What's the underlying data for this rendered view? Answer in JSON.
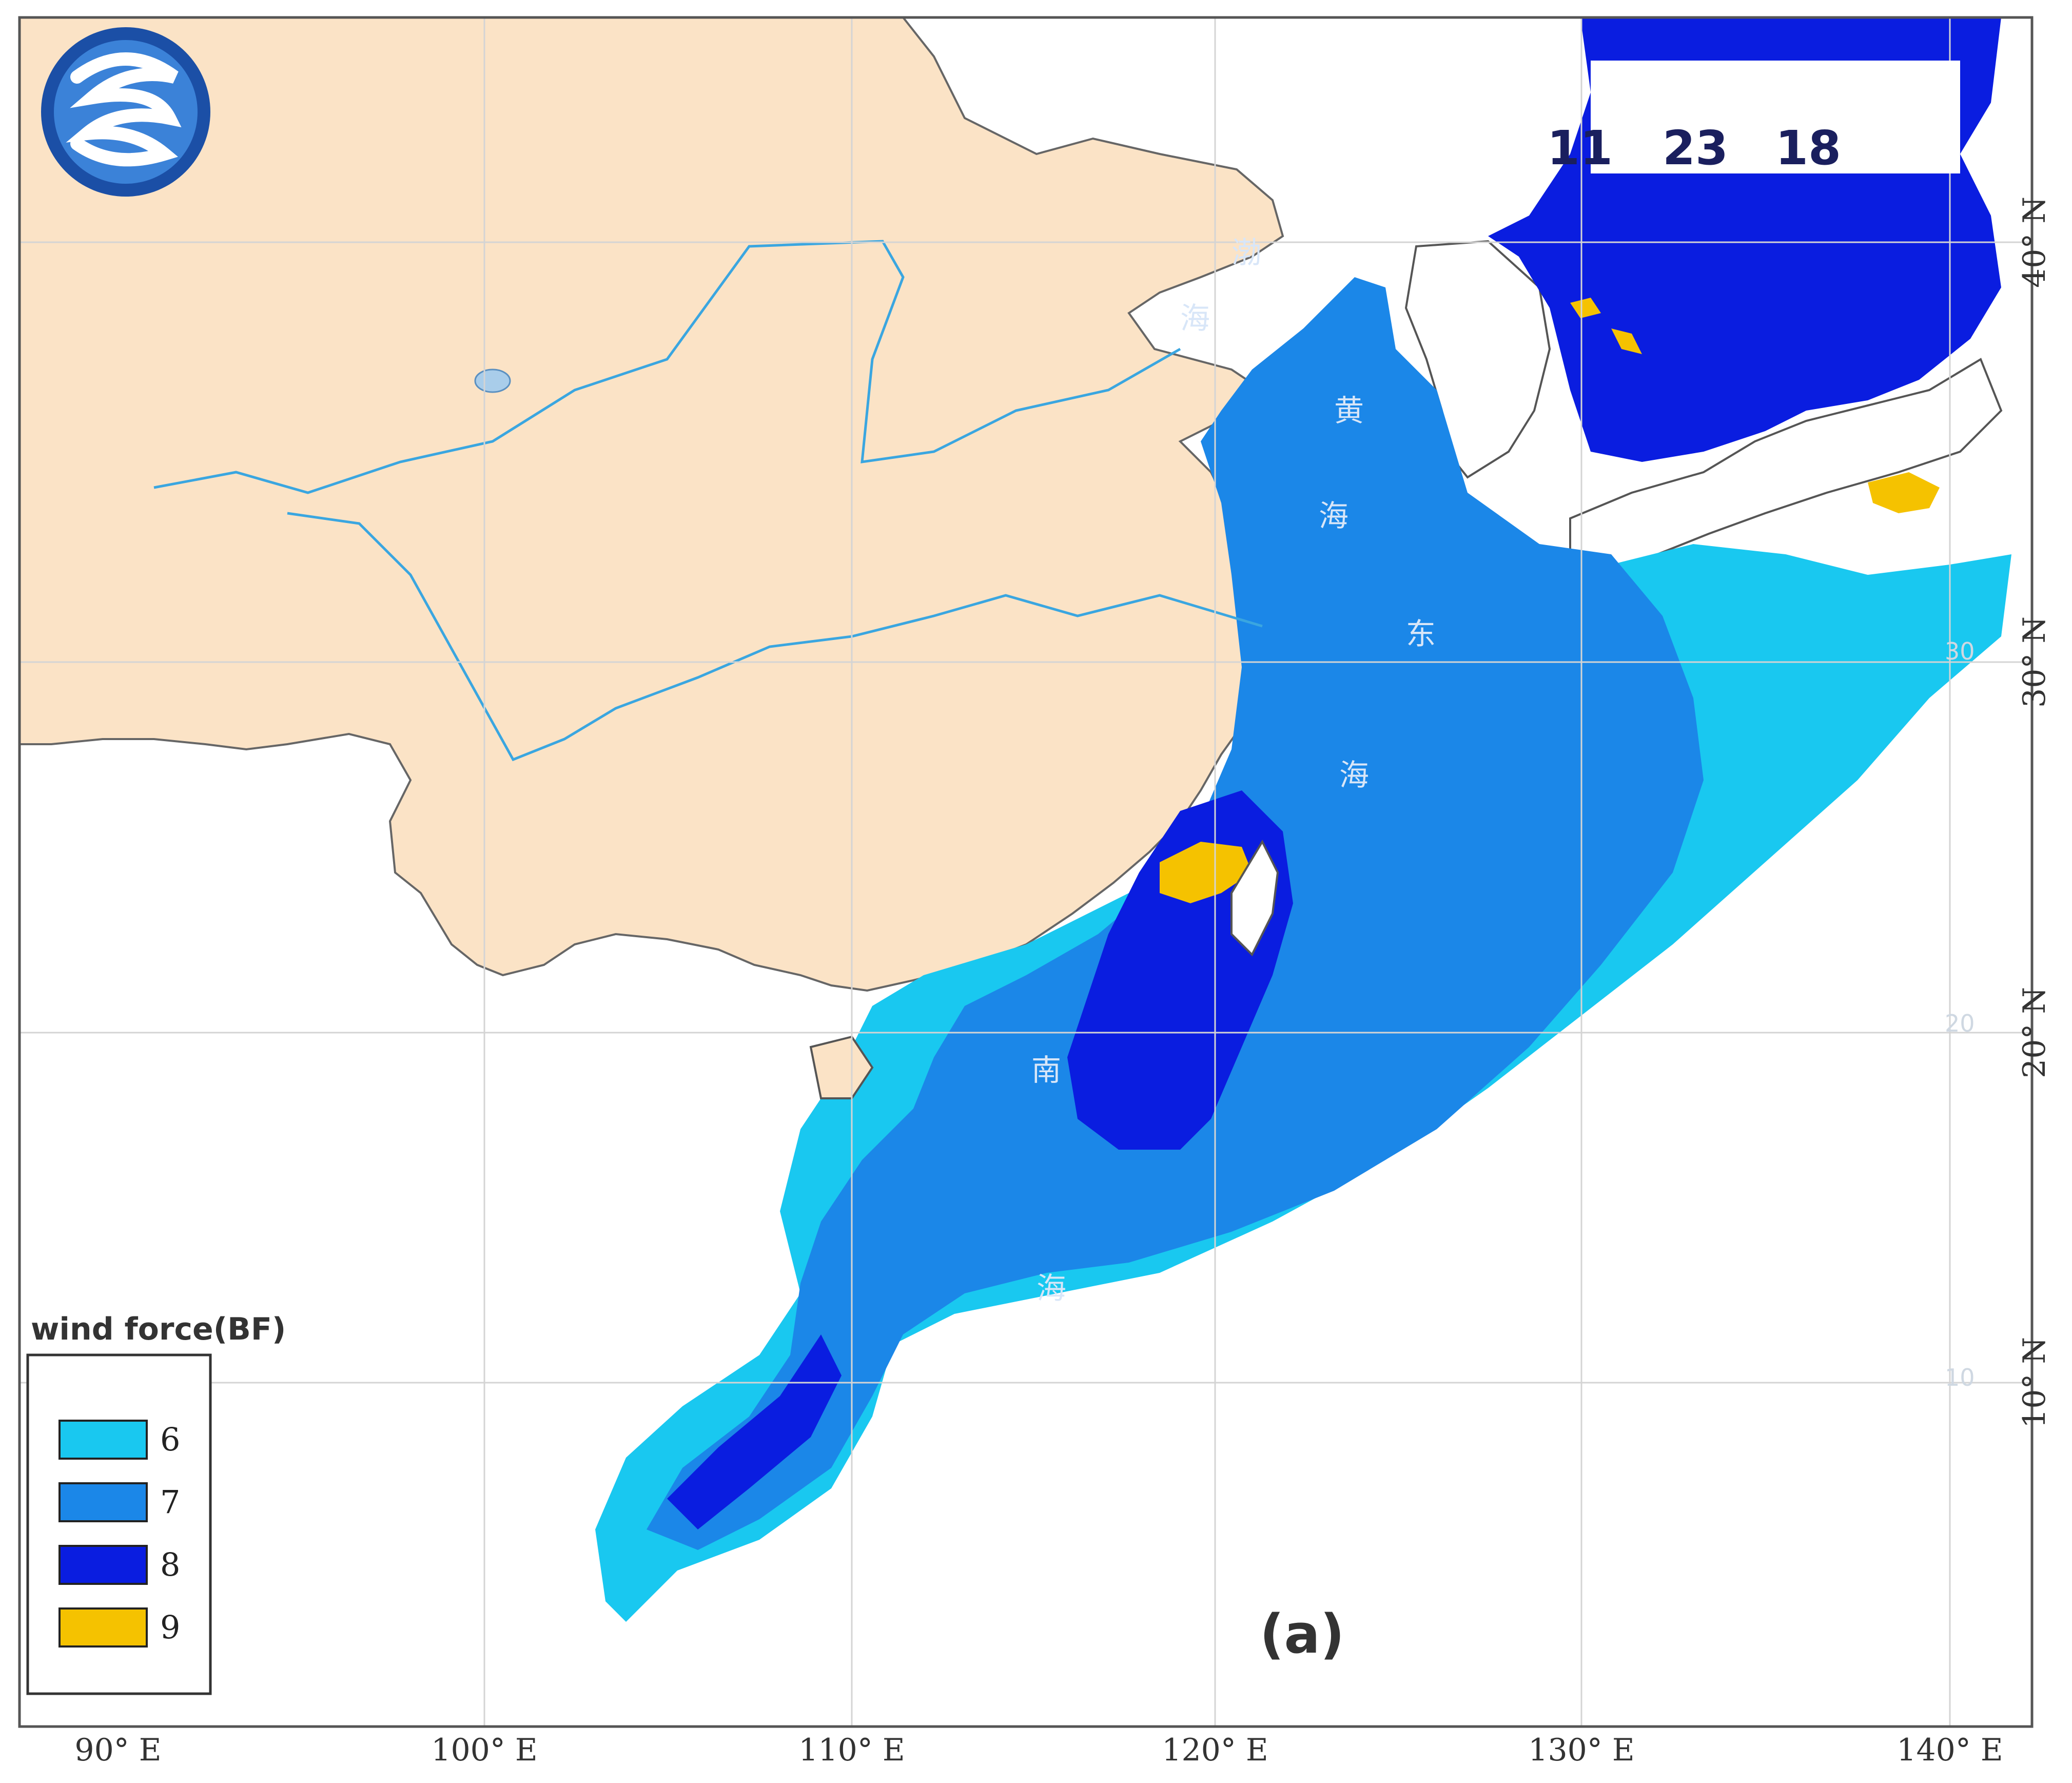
{
  "datetime": {
    "month": "11",
    "day": "23",
    "hour": "18"
  },
  "panel_label": "(a)",
  "axes": {
    "lon_labels": [
      "90° E",
      "100° E",
      "110° E",
      "120° E",
      "130° E",
      "140° E"
    ],
    "lat_labels": [
      "40° N",
      "30° N",
      "20° N",
      "10° N"
    ],
    "inner_lat_labels": [
      "30",
      "20",
      "10"
    ]
  },
  "sea_labels": {
    "bohai": [
      "渤",
      "海"
    ],
    "yellow_sea": [
      "黄",
      "海"
    ],
    "east_china_sea": [
      "东",
      "海"
    ],
    "south_china_sea": [
      "南",
      "海"
    ]
  },
  "legend": {
    "title": "wind force(BF)",
    "items": [
      {
        "value": "6",
        "color": "#19c8f0"
      },
      {
        "value": "7",
        "color": "#1b87e8"
      },
      {
        "value": "8",
        "color": "#0a1de0"
      },
      {
        "value": "9",
        "color": "#f5c200"
      }
    ]
  },
  "colors": {
    "land_china": "#fbe3c6",
    "other_land": "#ffffff",
    "rivers": "#3aa6e0"
  },
  "logo": {
    "icon": "agency-logo-icon"
  }
}
